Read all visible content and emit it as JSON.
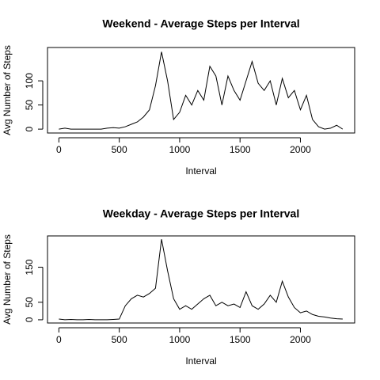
{
  "chart_data": [
    {
      "type": "line",
      "title": "Weekend - Average Steps per Interval",
      "x_label": "Interval",
      "y_label": "Avg Number of Steps",
      "x": [
        0,
        50,
        100,
        150,
        200,
        250,
        300,
        350,
        400,
        450,
        500,
        550,
        600,
        650,
        700,
        750,
        800,
        850,
        900,
        950,
        1000,
        1050,
        1100,
        1150,
        1200,
        1250,
        1300,
        1350,
        1400,
        1450,
        1500,
        1550,
        1600,
        1650,
        1700,
        1750,
        1800,
        1850,
        1900,
        1950,
        2000,
        2050,
        2100,
        2150,
        2200,
        2250,
        2300,
        2350
      ],
      "values": [
        0,
        2,
        0,
        0,
        0,
        0,
        0,
        0,
        2,
        3,
        2,
        5,
        10,
        15,
        25,
        40,
        90,
        160,
        100,
        20,
        35,
        70,
        50,
        80,
        60,
        130,
        110,
        50,
        110,
        80,
        60,
        100,
        140,
        95,
        80,
        100,
        50,
        105,
        65,
        80,
        40,
        70,
        20,
        5,
        0,
        2,
        8,
        0
      ],
      "color": "#000000",
      "xlim": [
        -94.2,
        2449.2
      ],
      "ylim": [
        -8,
        169
      ],
      "xticks": [
        0,
        500,
        1000,
        1500,
        2000
      ],
      "yticks": [
        0,
        50,
        100
      ]
    },
    {
      "type": "line",
      "title": "Weekday - Average Steps per Interval",
      "x_label": "Interval",
      "y_label": "Avg Number of Steps",
      "x": [
        0,
        50,
        100,
        150,
        200,
        250,
        300,
        350,
        400,
        450,
        500,
        550,
        600,
        650,
        700,
        750,
        800,
        850,
        900,
        950,
        1000,
        1050,
        1100,
        1150,
        1200,
        1250,
        1300,
        1350,
        1400,
        1450,
        1500,
        1550,
        1600,
        1650,
        1700,
        1750,
        1800,
        1850,
        1900,
        1950,
        2000,
        2050,
        2100,
        2150,
        2200,
        2250,
        2300,
        2350
      ],
      "values": [
        2,
        0,
        1,
        0,
        0,
        1,
        0,
        0,
        0,
        1,
        2,
        40,
        60,
        70,
        65,
        75,
        90,
        230,
        140,
        60,
        30,
        40,
        30,
        45,
        60,
        70,
        40,
        50,
        40,
        45,
        35,
        80,
        40,
        30,
        45,
        70,
        50,
        110,
        65,
        35,
        20,
        25,
        15,
        10,
        8,
        5,
        3,
        2
      ],
      "color": "#000000",
      "xlim": [
        -94.2,
        2449.2
      ],
      "ylim": [
        -9.2,
        239.4
      ],
      "xticks": [
        0,
        500,
        1000,
        1500,
        2000
      ],
      "yticks": [
        0,
        50,
        150
      ]
    }
  ]
}
